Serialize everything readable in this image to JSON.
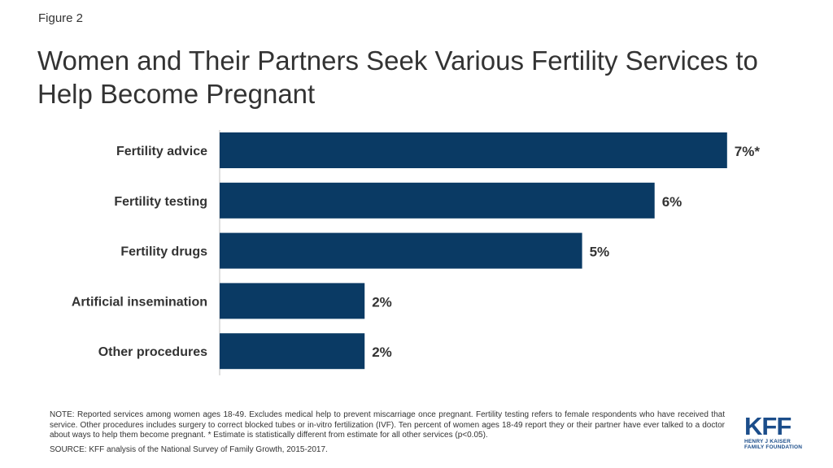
{
  "figure_label": "Figure 2",
  "title": "Women and Their Partners Seek Various Fertility Services to Help Become Pregnant",
  "chart_data": {
    "type": "bar",
    "orientation": "horizontal",
    "categories": [
      "Fertility advice",
      "Fertility testing",
      "Fertility drugs",
      "Artificial insemination",
      "Other procedures"
    ],
    "values": [
      7,
      6,
      5,
      2,
      2
    ],
    "value_labels": [
      "7%*",
      "6%",
      "5%",
      "2%",
      "2%"
    ],
    "unit": "%",
    "xlim": [
      0,
      7.35
    ],
    "grid": false,
    "bar_color": "#0a3a64"
  },
  "note": "NOTE: Reported services among women ages 18-49. Excludes medical help to prevent miscarriage once pregnant. Fertility testing refers to female respondents who have received that service. Other procedures includes surgery to correct blocked tubes or in-vitro fertilization (IVF). Ten percent of women ages 18-49 report they or their partner have ever talked to a doctor about ways to help them become pregnant. * Estimate is statistically different from estimate for all other services (p<0.05).",
  "source": "SOURCE: KFF analysis of the National Survey of Family Growth, 2015-2017.",
  "logo": {
    "main": "KFF",
    "line1": "HENRY J KAISER",
    "line2": "FAMILY FOUNDATION",
    "color": "#1b4d8a"
  }
}
